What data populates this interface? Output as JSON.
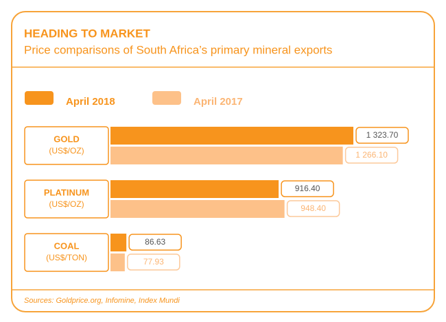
{
  "chart_data": {
    "type": "bar",
    "orientation": "horizontal",
    "title": "HEADING TO MARKET",
    "subtitle": "Price comparisons of South Africa’s primary mineral exports",
    "categories": [
      "GOLD",
      "PLATINUM",
      "COAL"
    ],
    "units": [
      "(US$/OZ)",
      "(US$/OZ)",
      "(US$/TON)"
    ],
    "series": [
      {
        "name": "April 2018",
        "color": "#f7941d",
        "values": [
          1323.7,
          916.4,
          86.63
        ],
        "value_labels": [
          "1 323.70",
          "916.40",
          "86.63"
        ]
      },
      {
        "name": "April 2017",
        "color": "#fdc189",
        "values": [
          1266.1,
          948.4,
          77.93
        ],
        "value_labels": [
          "1 266.10",
          "948.40",
          "77.93"
        ]
      }
    ],
    "source": "Sources: Goldprice.org, Infomine, Index Mundi"
  }
}
